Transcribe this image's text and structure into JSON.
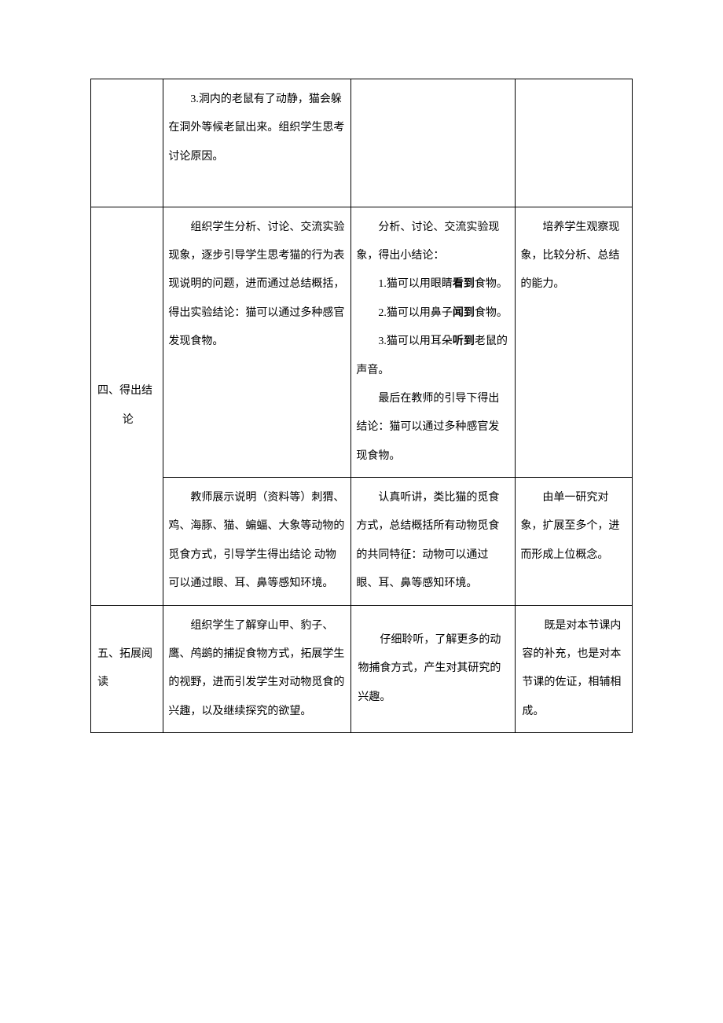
{
  "row1": {
    "col2_p1": "　　3.洞内的老鼠有了动静，猫会躲在洞外等候老鼠出来。组织学生思考讨论原因。"
  },
  "row2a": {
    "col1_l1": "四、得出结",
    "col1_l2": "论",
    "col2_p1": "　　组织学生分析、讨论、交流实验现象，逐步引导学生思考猫的行为表现说明的问题，进而通过总结概括，得出实验结论：猫可以通过多种感官发现食物。",
    "col3_p1": "　　分析、讨论、交流实验现象，得出小结论：",
    "col3_p2a": "　　1.猫可以用眼睛",
    "col3_p2b": "看到",
    "col3_p2c": "食物。",
    "col3_p3a": "　　2.猫可以用鼻子",
    "col3_p3b": "闻到",
    "col3_p3c": "食物。",
    "col3_p4a": "　　3.猫可以用耳朵",
    "col3_p4b": "听到",
    "col3_p4c": "老鼠的声音。",
    "col3_p5": "　　最后在教师的引导下得出结论：猫可以通过多种感官发现食物。",
    "col4_p1": "　　培养学生观察现象，比较分析、总结的能力。"
  },
  "row2b": {
    "col2_p1": "　　教师展示说明（资料等）刺猬、鸡、海豚、猫、蝙蝠、大象等动物的觅食方式，引导学生得出结论 动物可以通过眼、耳、鼻等感知环境。",
    "col3_p1": "　　认真听讲，类比猫的觅食方式，总结概括所有动物觅食的共同特征：动物可以通过眼、耳、鼻等感知环境。",
    "col4_p1": "　　由单一研究对象，扩展至多个，进而形成上位概念。"
  },
  "row3": {
    "col1_l1": "五、拓展阅",
    "col1_l2": "读",
    "col2_p1": "　　组织学生了解穿山甲、豹子、鹰、鸬鹚的捕捉食物方式，拓展学生的视野，进而引发学生对动物觅食的兴趣，以及继续探究的欲望。",
    "col3_p1": "　　仔细聆听，了解更多的动物捕食方式，产生对其研究的兴趣。",
    "col4_p1": "　　既是对本节课内容的补充，也是对本节课的佐证，相辅相成。"
  }
}
